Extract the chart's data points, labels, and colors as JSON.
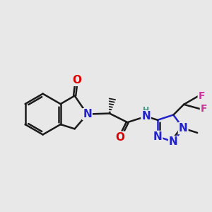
{
  "bg_color": "#e8e8e8",
  "bond_color": "#1a1a1a",
  "bond_width": 1.8,
  "atom_colors": {
    "O": "#dd0000",
    "N": "#2222cc",
    "F": "#cc3399",
    "H": "#44998a",
    "C": "#1a1a1a"
  },
  "font_size": 9.5,
  "figsize": [
    3.0,
    3.0
  ],
  "dpi": 100
}
